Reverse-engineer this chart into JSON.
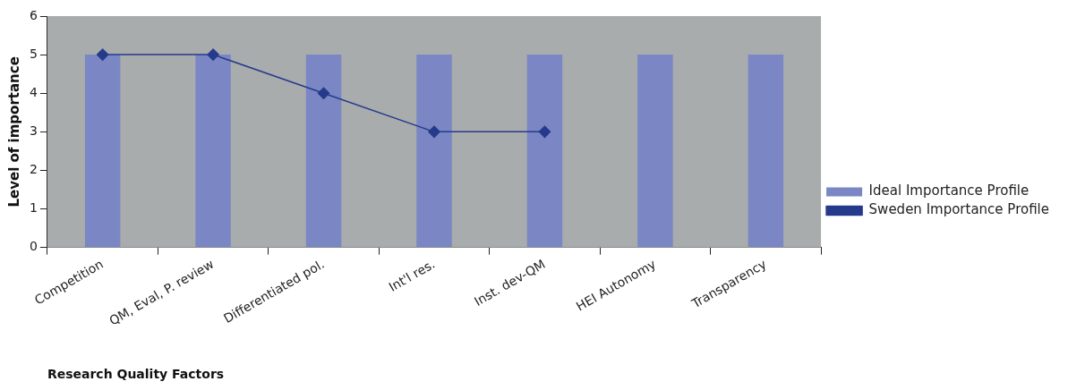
{
  "chart_data": {
    "type": "bar",
    "xlabel": "Research Quality Factors",
    "ylabel": "Level of importance",
    "categories": [
      "Competition",
      "QM, Eval, P. review",
      "Differentiated pol.",
      "Int'l res.",
      "Inst. dev-QM",
      "HEI Autonomy",
      "Transparency"
    ],
    "series": [
      {
        "name": "Ideal Importance Profile",
        "color": "#7a87c4",
        "values": [
          5,
          5,
          5,
          5,
          5,
          5,
          5
        ]
      },
      {
        "name": "Sweden Importance Profile",
        "type": "line",
        "color": "#263a8c",
        "values": [
          5,
          5,
          4,
          3,
          3,
          null,
          null
        ]
      }
    ],
    "ylim": [
      0,
      6
    ],
    "yticks": [
      0,
      1,
      2,
      3,
      4,
      5,
      6
    ],
    "grid": false,
    "legend": "right",
    "marker": "diamond",
    "line_style": "solid"
  }
}
